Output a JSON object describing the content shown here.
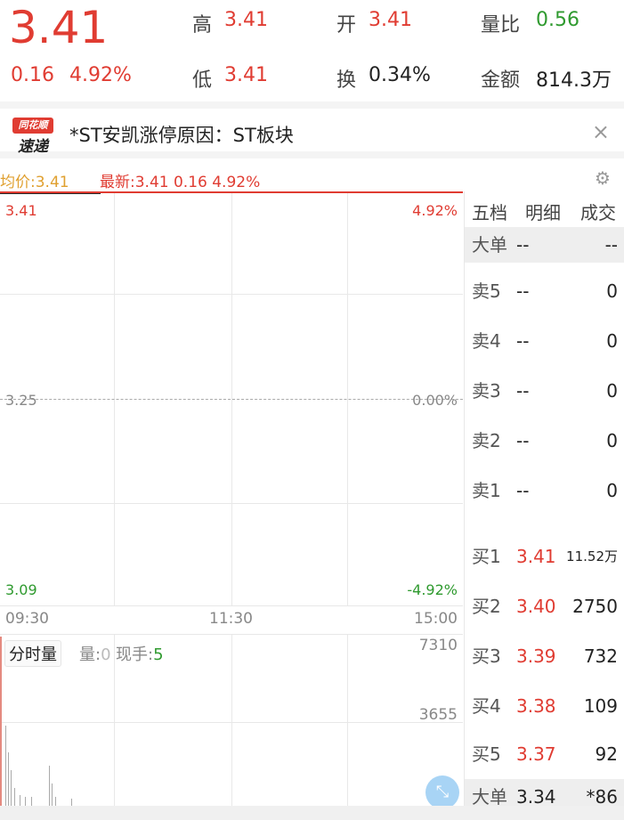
{
  "quote": {
    "price": "3.41",
    "change": "0.16",
    "change_pct": "4.92%",
    "high_label": "高",
    "high": "3.41",
    "open_label": "开",
    "open": "3.41",
    "vol_ratio_label": "量比",
    "vol_ratio": "0.56",
    "low_label": "低",
    "low": "3.41",
    "turnover_label": "换",
    "turnover": "0.34%",
    "amount_label": "金额",
    "amount": "814.3万"
  },
  "news": {
    "logo_top": "同花顺",
    "logo_bottom": "速递",
    "text": "*ST安凯涨停原因：ST板块"
  },
  "chart": {
    "avg_label": "均价:3.41",
    "latest_label": "最新:3.41 0.16 4.92%",
    "y_top": "3.41",
    "y_mid": "3.25",
    "y_bot": "3.09",
    "pct_top": "4.92%",
    "pct_mid": "0.00%",
    "pct_bot": "-4.92%",
    "times": [
      "09:30",
      "11:30",
      "15:00"
    ],
    "vol_button": "分时量",
    "vol_label": "量:",
    "vol_value": "0",
    "now_label": "现手:",
    "now_value": "5",
    "vol_max": "7310",
    "vol_mid": "3655"
  },
  "orderbook": {
    "tabs": [
      "五档",
      "明细",
      "成交"
    ],
    "top_big": {
      "name": "大单",
      "price": "--",
      "vol": "--"
    },
    "asks": [
      {
        "name": "卖5",
        "price": "--",
        "vol": "0"
      },
      {
        "name": "卖4",
        "price": "--",
        "vol": "0"
      },
      {
        "name": "卖3",
        "price": "--",
        "vol": "0"
      },
      {
        "name": "卖2",
        "price": "--",
        "vol": "0"
      },
      {
        "name": "卖1",
        "price": "--",
        "vol": "0"
      }
    ],
    "bids": [
      {
        "name": "买1",
        "price": "3.41",
        "vol": "11.52万"
      },
      {
        "name": "买2",
        "price": "3.40",
        "vol": "2750"
      },
      {
        "name": "买3",
        "price": "3.39",
        "vol": "732"
      },
      {
        "name": "买4",
        "price": "3.38",
        "vol": "109"
      },
      {
        "name": "买5",
        "price": "3.37",
        "vol": "92"
      }
    ],
    "bottom_big": {
      "name": "大单",
      "price": "3.34",
      "vol": "*86"
    }
  },
  "colors": {
    "up": "#e03c32",
    "down": "#2f9a2f",
    "avg": "#e0a030"
  }
}
